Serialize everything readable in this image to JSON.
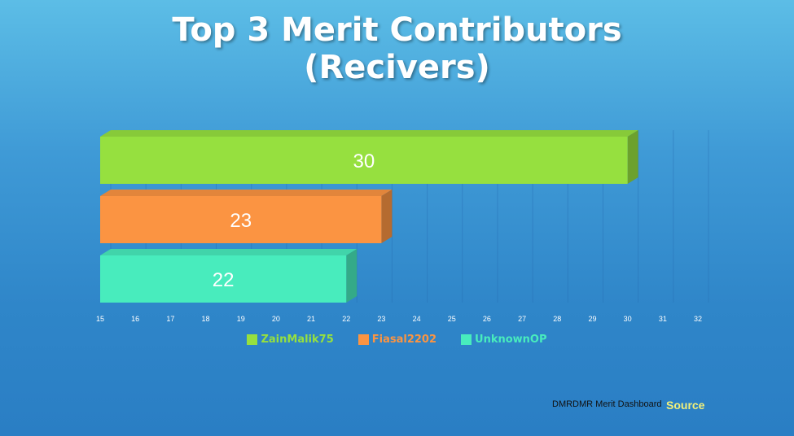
{
  "title_line1": "Top 3 Merit Contributors",
  "title_line2": "(Recivers)",
  "footer": {
    "label": "DMRDMR Merit Dashboard",
    "source_link": "Source"
  },
  "chart_data": {
    "type": "bar",
    "orientation": "horizontal",
    "categories": [
      "ZainMalik75",
      "Fiasal2202",
      "UnknownOP"
    ],
    "values": [
      30,
      23,
      22
    ],
    "colors": [
      "#96e03f",
      "#fb9442",
      "#48ecbd"
    ],
    "xticks": [
      15,
      16,
      17,
      18,
      19,
      20,
      21,
      22,
      23,
      24,
      25,
      26,
      27,
      28,
      29,
      30,
      31,
      32
    ],
    "xlim": [
      15,
      32
    ],
    "grid": true,
    "legend": "bottom"
  }
}
